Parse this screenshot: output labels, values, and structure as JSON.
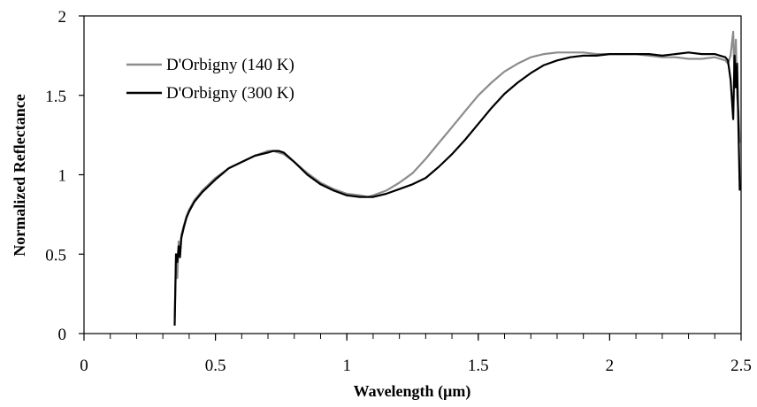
{
  "chart_data": {
    "type": "line",
    "title": "",
    "xlabel": "Wavelength (µm)",
    "ylabel": "Normalized Reflectance",
    "xlim": [
      0,
      2.5
    ],
    "ylim": [
      0,
      2
    ],
    "x_ticks": [
      0,
      0.5,
      1,
      1.5,
      2,
      2.5
    ],
    "x_tick_labels": [
      "0",
      "0.5",
      "1",
      "1.5",
      "2",
      "2.5"
    ],
    "x_minor_step": 0.1,
    "y_ticks": [
      0,
      0.5,
      1,
      1.5,
      2
    ],
    "y_tick_labels": [
      "0",
      "0.5",
      "1",
      "1.5",
      "2"
    ],
    "grid": false,
    "legend_position": "top-left",
    "series": [
      {
        "name": "D'Orbigny (140 K)",
        "color": "#8c8c8c",
        "x": [
          0.345,
          0.35,
          0.355,
          0.36,
          0.365,
          0.37,
          0.38,
          0.39,
          0.4,
          0.42,
          0.45,
          0.5,
          0.55,
          0.6,
          0.65,
          0.7,
          0.72,
          0.74,
          0.76,
          0.8,
          0.85,
          0.9,
          0.95,
          1.0,
          1.05,
          1.08,
          1.1,
          1.15,
          1.2,
          1.25,
          1.3,
          1.35,
          1.4,
          1.45,
          1.5,
          1.55,
          1.6,
          1.65,
          1.7,
          1.75,
          1.8,
          1.85,
          1.9,
          1.95,
          2.0,
          2.05,
          2.1,
          2.15,
          2.2,
          2.25,
          2.3,
          2.35,
          2.4,
          2.42,
          2.44,
          2.45,
          2.46,
          2.47,
          2.475,
          2.48,
          2.485,
          2.49,
          2.495
        ],
        "y": [
          0.1,
          0.45,
          0.35,
          0.58,
          0.5,
          0.62,
          0.68,
          0.74,
          0.78,
          0.84,
          0.9,
          0.98,
          1.04,
          1.08,
          1.12,
          1.15,
          1.15,
          1.14,
          1.13,
          1.08,
          1.01,
          0.95,
          0.91,
          0.88,
          0.87,
          0.86,
          0.87,
          0.9,
          0.95,
          1.01,
          1.1,
          1.2,
          1.3,
          1.4,
          1.5,
          1.58,
          1.65,
          1.7,
          1.74,
          1.76,
          1.77,
          1.77,
          1.77,
          1.76,
          1.76,
          1.76,
          1.76,
          1.75,
          1.74,
          1.74,
          1.73,
          1.73,
          1.74,
          1.73,
          1.72,
          1.7,
          1.75,
          1.9,
          1.6,
          1.85,
          1.5,
          1.4,
          1.2
        ]
      },
      {
        "name": "D'Orbigny (300 K)",
        "color": "#000000",
        "x": [
          0.345,
          0.35,
          0.355,
          0.36,
          0.365,
          0.37,
          0.38,
          0.39,
          0.4,
          0.42,
          0.45,
          0.5,
          0.55,
          0.6,
          0.65,
          0.7,
          0.72,
          0.74,
          0.76,
          0.8,
          0.85,
          0.9,
          0.95,
          1.0,
          1.05,
          1.08,
          1.1,
          1.15,
          1.2,
          1.25,
          1.3,
          1.35,
          1.4,
          1.45,
          1.5,
          1.55,
          1.6,
          1.65,
          1.7,
          1.75,
          1.8,
          1.85,
          1.9,
          1.95,
          2.0,
          2.05,
          2.1,
          2.15,
          2.2,
          2.25,
          2.3,
          2.35,
          2.4,
          2.42,
          2.44,
          2.45,
          2.46,
          2.47,
          2.475,
          2.48,
          2.485,
          2.49,
          2.495
        ],
        "y": [
          0.05,
          0.5,
          0.45,
          0.55,
          0.48,
          0.6,
          0.67,
          0.73,
          0.77,
          0.83,
          0.89,
          0.97,
          1.04,
          1.08,
          1.12,
          1.14,
          1.15,
          1.15,
          1.14,
          1.08,
          1.0,
          0.94,
          0.9,
          0.87,
          0.86,
          0.86,
          0.86,
          0.88,
          0.91,
          0.94,
          0.98,
          1.05,
          1.13,
          1.22,
          1.32,
          1.42,
          1.51,
          1.58,
          1.64,
          1.69,
          1.72,
          1.74,
          1.75,
          1.75,
          1.76,
          1.76,
          1.76,
          1.76,
          1.75,
          1.76,
          1.77,
          1.76,
          1.76,
          1.75,
          1.74,
          1.72,
          1.6,
          1.35,
          1.75,
          1.55,
          1.7,
          1.3,
          0.9
        ]
      }
    ]
  }
}
